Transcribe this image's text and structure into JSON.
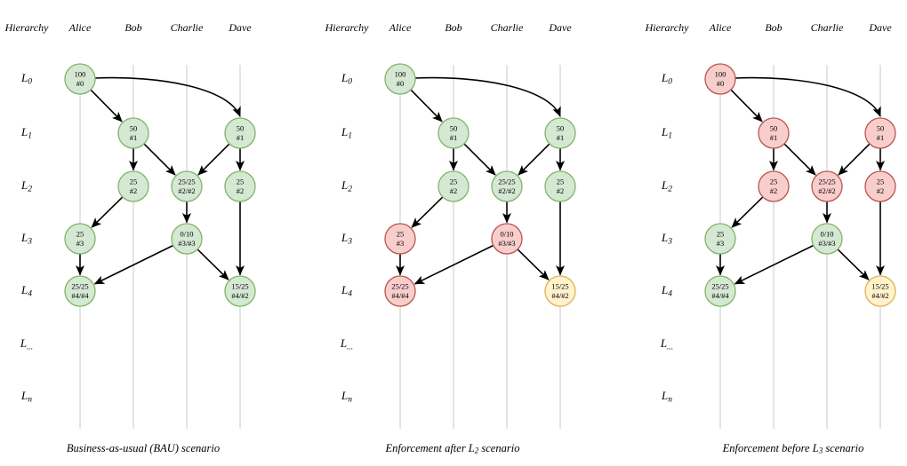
{
  "figure": {
    "hierarchy_label": "Hierarchy",
    "columns": [
      "Alice",
      "Bob",
      "Charlie",
      "Dave"
    ],
    "levels": [
      {
        "base": "L",
        "sub": "0"
      },
      {
        "base": "L",
        "sub": "1"
      },
      {
        "base": "L",
        "sub": "2"
      },
      {
        "base": "L",
        "sub": "3"
      },
      {
        "base": "L",
        "sub": "4"
      },
      {
        "base": "L",
        "sub": "..."
      },
      {
        "base": "L",
        "sub": "n"
      }
    ],
    "nodes": [
      {
        "id": "alice-l0",
        "col": 0,
        "level": 0,
        "value": "100",
        "rank": "#0"
      },
      {
        "id": "bob-l1",
        "col": 1,
        "level": 1,
        "value": "50",
        "rank": "#1"
      },
      {
        "id": "dave-l1",
        "col": 3,
        "level": 1,
        "value": "50",
        "rank": "#1"
      },
      {
        "id": "bob-l2",
        "col": 1,
        "level": 2,
        "value": "25",
        "rank": "#2"
      },
      {
        "id": "charlie-l2",
        "col": 2,
        "level": 2,
        "value": "25/25",
        "rank": "#2/#2"
      },
      {
        "id": "dave-l2",
        "col": 3,
        "level": 2,
        "value": "25",
        "rank": "#2"
      },
      {
        "id": "alice-l3",
        "col": 0,
        "level": 3,
        "value": "25",
        "rank": "#3"
      },
      {
        "id": "charlie-l3",
        "col": 2,
        "level": 3,
        "value": "0/10",
        "rank": "#3/#3"
      },
      {
        "id": "alice-l4",
        "col": 0,
        "level": 4,
        "value": "25/25",
        "rank": "#4/#4"
      },
      {
        "id": "dave-l4",
        "col": 3,
        "level": 4,
        "value": "15/25",
        "rank": "#4/#2"
      }
    ],
    "edges": [
      {
        "from": "alice-l0",
        "to": "bob-l1",
        "shape": "straight"
      },
      {
        "from": "alice-l0",
        "to": "dave-l1",
        "shape": "curve"
      },
      {
        "from": "bob-l1",
        "to": "bob-l2",
        "shape": "straight"
      },
      {
        "from": "bob-l1",
        "to": "charlie-l2",
        "shape": "straight"
      },
      {
        "from": "dave-l1",
        "to": "charlie-l2",
        "shape": "straight"
      },
      {
        "from": "dave-l1",
        "to": "dave-l2",
        "shape": "straight"
      },
      {
        "from": "bob-l2",
        "to": "alice-l3",
        "shape": "straight"
      },
      {
        "from": "charlie-l2",
        "to": "charlie-l3",
        "shape": "straight"
      },
      {
        "from": "dave-l2",
        "to": "dave-l4",
        "shape": "straight"
      },
      {
        "from": "alice-l3",
        "to": "alice-l4",
        "shape": "straight"
      },
      {
        "from": "charlie-l3",
        "to": "alice-l4",
        "shape": "straight"
      },
      {
        "from": "charlie-l3",
        "to": "dave-l4",
        "shape": "straight"
      }
    ],
    "palette": {
      "green": {
        "fill": "#d5e8d4",
        "stroke": "#82b366"
      },
      "red": {
        "fill": "#f8cecc",
        "stroke": "#b85450"
      },
      "yellow": {
        "fill": "#fff2cc",
        "stroke": "#d6b656"
      },
      "lane": "#c9c9c9",
      "edge": "#000000"
    },
    "diagrams": [
      {
        "id": "bau",
        "caption": [
          {
            "t": "Business-as-usual (BAU) scenario",
            "sub": false
          }
        ],
        "node_states": [
          "green",
          "green",
          "green",
          "green",
          "green",
          "green",
          "green",
          "green",
          "green",
          "green"
        ]
      },
      {
        "id": "enforcement-after-l2",
        "caption": [
          {
            "t": "Enforcement after L",
            "sub": false
          },
          {
            "t": "2",
            "sub": true
          },
          {
            "t": " scenario",
            "sub": false
          }
        ],
        "node_states": [
          "green",
          "green",
          "green",
          "green",
          "green",
          "green",
          "red",
          "red",
          "red",
          "yellow"
        ]
      },
      {
        "id": "enforcement-before-l3",
        "caption": [
          {
            "t": "Enforcement before L",
            "sub": false
          },
          {
            "t": "3",
            "sub": true
          },
          {
            "t": " scenario",
            "sub": false
          }
        ],
        "node_states": [
          "red",
          "red",
          "red",
          "red",
          "red",
          "red",
          "green",
          "green",
          "green",
          "yellow"
        ]
      }
    ]
  }
}
